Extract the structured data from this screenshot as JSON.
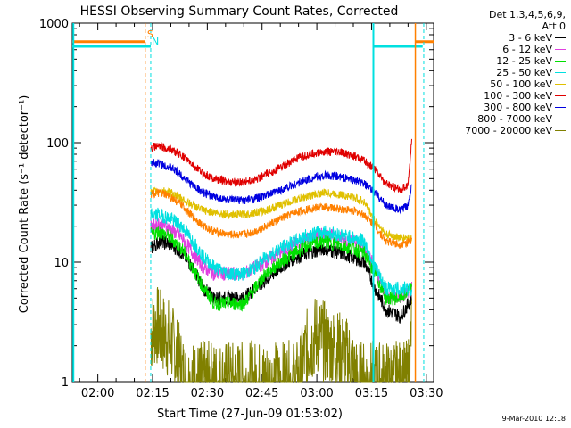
{
  "chart_data": {
    "type": "line",
    "title": "HESSI Observing Summary Count Rates, Corrected",
    "xlabel": "Start Time (27-Jun-09 01:53:02)",
    "ylabel": "Corrected Count Rate (s⁻¹ detector⁻¹)",
    "yscale": "log",
    "ylim": [
      1,
      1000
    ],
    "xlim_minutes": [
      113,
      212
    ],
    "x_ticks": [
      {
        "label": "02:00",
        "minutes": 120
      },
      {
        "label": "02:15",
        "minutes": 135
      },
      {
        "label": "02:30",
        "minutes": 150
      },
      {
        "label": "02:45",
        "minutes": 165
      },
      {
        "label": "03:00",
        "minutes": 180
      },
      {
        "label": "03:15",
        "minutes": 195
      },
      {
        "label": "03:30",
        "minutes": 210
      }
    ],
    "y_ticks": [
      {
        "label": "1",
        "value": 1
      },
      {
        "label": "10",
        "value": 10
      },
      {
        "label": "100",
        "value": 100
      },
      {
        "label": "1000",
        "value": 1000
      }
    ],
    "grid": false,
    "legend_placement": "outside-right",
    "legend_header": [
      "Det 1,3,4,5,6,9,",
      "Att 0"
    ],
    "series": [
      {
        "name": "3 - 6 keV",
        "color": "#000000",
        "points": [
          [
            134.5,
            13
          ],
          [
            137,
            15
          ],
          [
            140,
            14
          ],
          [
            143,
            12
          ],
          [
            146,
            9
          ],
          [
            149,
            6
          ],
          [
            152,
            5
          ],
          [
            156,
            5
          ],
          [
            160,
            5
          ],
          [
            163,
            6
          ],
          [
            166,
            7
          ],
          [
            170,
            9
          ],
          [
            174,
            11
          ],
          [
            178,
            12
          ],
          [
            182,
            13
          ],
          [
            186,
            12
          ],
          [
            190,
            11
          ],
          [
            193,
            10
          ],
          [
            196,
            6
          ],
          [
            199,
            4
          ],
          [
            203,
            3.5
          ],
          [
            206,
            5
          ]
        ]
      },
      {
        "name": "6 - 12 keV",
        "color": "#e040e0",
        "points": [
          [
            134.5,
            20
          ],
          [
            137,
            21
          ],
          [
            140,
            19
          ],
          [
            143,
            16
          ],
          [
            146,
            12
          ],
          [
            149,
            9
          ],
          [
            152,
            8
          ],
          [
            156,
            8
          ],
          [
            160,
            8
          ],
          [
            163,
            9
          ],
          [
            166,
            10
          ],
          [
            170,
            12
          ],
          [
            174,
            14
          ],
          [
            178,
            16
          ],
          [
            182,
            17
          ],
          [
            186,
            16
          ],
          [
            190,
            15
          ],
          [
            193,
            13
          ],
          [
            196,
            9
          ],
          [
            199,
            5
          ],
          [
            203,
            5
          ],
          [
            206,
            6
          ]
        ]
      },
      {
        "name": "12 - 25 keV",
        "color": "#00e000",
        "points": [
          [
            134.5,
            17
          ],
          [
            137,
            18
          ],
          [
            140,
            16
          ],
          [
            143,
            13
          ],
          [
            146,
            9
          ],
          [
            149,
            6
          ],
          [
            152,
            4.5
          ],
          [
            156,
            4.5
          ],
          [
            160,
            4.5
          ],
          [
            163,
            6
          ],
          [
            166,
            8
          ],
          [
            170,
            10
          ],
          [
            174,
            12
          ],
          [
            178,
            14
          ],
          [
            182,
            15
          ],
          [
            186,
            14
          ],
          [
            190,
            13
          ],
          [
            193,
            12
          ],
          [
            196,
            8
          ],
          [
            199,
            5
          ],
          [
            203,
            5
          ],
          [
            206,
            6
          ]
        ]
      },
      {
        "name": "25 - 50 keV",
        "color": "#00e0e0",
        "points": [
          [
            134.5,
            25
          ],
          [
            137,
            25
          ],
          [
            140,
            23
          ],
          [
            143,
            20
          ],
          [
            146,
            15
          ],
          [
            149,
            11
          ],
          [
            152,
            9
          ],
          [
            156,
            8
          ],
          [
            160,
            8
          ],
          [
            163,
            9
          ],
          [
            166,
            11
          ],
          [
            170,
            13
          ],
          [
            174,
            15
          ],
          [
            178,
            17
          ],
          [
            182,
            18
          ],
          [
            186,
            17
          ],
          [
            190,
            16
          ],
          [
            193,
            15
          ],
          [
            196,
            9
          ],
          [
            199,
            6
          ],
          [
            203,
            6
          ],
          [
            206,
            6
          ]
        ]
      },
      {
        "name": "50 - 100 keV",
        "color": "#e0c000",
        "points": [
          [
            134.5,
            38
          ],
          [
            137,
            40
          ],
          [
            140,
            38
          ],
          [
            143,
            34
          ],
          [
            146,
            30
          ],
          [
            149,
            27
          ],
          [
            152,
            26
          ],
          [
            156,
            25
          ],
          [
            160,
            25
          ],
          [
            163,
            26
          ],
          [
            166,
            27
          ],
          [
            170,
            30
          ],
          [
            174,
            33
          ],
          [
            178,
            36
          ],
          [
            182,
            38
          ],
          [
            186,
            37
          ],
          [
            190,
            35
          ],
          [
            193,
            32
          ],
          [
            196,
            22
          ],
          [
            199,
            17
          ],
          [
            203,
            16
          ],
          [
            206,
            16
          ]
        ]
      },
      {
        "name": "100 - 300 keV",
        "color": "#e00000",
        "points": [
          [
            134.5,
            92
          ],
          [
            137,
            93
          ],
          [
            140,
            88
          ],
          [
            143,
            78
          ],
          [
            146,
            65
          ],
          [
            149,
            55
          ],
          [
            152,
            50
          ],
          [
            156,
            47
          ],
          [
            160,
            47
          ],
          [
            163,
            49
          ],
          [
            166,
            54
          ],
          [
            170,
            62
          ],
          [
            174,
            72
          ],
          [
            178,
            80
          ],
          [
            182,
            84
          ],
          [
            186,
            83
          ],
          [
            190,
            78
          ],
          [
            193,
            70
          ],
          [
            196,
            60
          ],
          [
            199,
            45
          ],
          [
            203,
            40
          ],
          [
            205,
            45
          ],
          [
            206,
            105
          ]
        ]
      },
      {
        "name": "300 - 800 keV",
        "color": "#0000e0",
        "points": [
          [
            134.5,
            68
          ],
          [
            137,
            67
          ],
          [
            140,
            62
          ],
          [
            143,
            53
          ],
          [
            146,
            44
          ],
          [
            149,
            38
          ],
          [
            152,
            35
          ],
          [
            156,
            33
          ],
          [
            160,
            33
          ],
          [
            163,
            34
          ],
          [
            166,
            36
          ],
          [
            170,
            40
          ],
          [
            174,
            45
          ],
          [
            178,
            50
          ],
          [
            182,
            53
          ],
          [
            186,
            52
          ],
          [
            190,
            49
          ],
          [
            193,
            45
          ],
          [
            196,
            38
          ],
          [
            199,
            30
          ],
          [
            203,
            27
          ],
          [
            205,
            30
          ],
          [
            206,
            45
          ]
        ]
      },
      {
        "name": "800 - 7000 keV",
        "color": "#ff8000",
        "points": [
          [
            134.5,
            37
          ],
          [
            137,
            38
          ],
          [
            140,
            35
          ],
          [
            143,
            30
          ],
          [
            146,
            24
          ],
          [
            149,
            20
          ],
          [
            152,
            18
          ],
          [
            156,
            17
          ],
          [
            160,
            17
          ],
          [
            163,
            18
          ],
          [
            166,
            20
          ],
          [
            170,
            23
          ],
          [
            174,
            26
          ],
          [
            178,
            28
          ],
          [
            182,
            29
          ],
          [
            186,
            28
          ],
          [
            190,
            27
          ],
          [
            193,
            25
          ],
          [
            196,
            20
          ],
          [
            199,
            15
          ],
          [
            203,
            14
          ],
          [
            206,
            15
          ]
        ]
      },
      {
        "name": "7000 - 20000 keV",
        "color": "#808000",
        "points": [
          [
            134.5,
            2.5
          ],
          [
            136,
            3
          ],
          [
            138,
            2.5
          ],
          [
            140,
            2.2
          ],
          [
            142,
            1.5
          ],
          [
            144,
            1
          ],
          [
            175,
            1
          ],
          [
            177,
            1.8
          ],
          [
            180,
            2.5
          ],
          [
            183,
            2
          ],
          [
            186,
            1.8
          ],
          [
            189,
            1.5
          ],
          [
            191,
            1
          ],
          [
            205,
            1
          ],
          [
            206,
            3
          ]
        ]
      }
    ],
    "flag_lines": [
      {
        "label": "S",
        "minutes": 133,
        "color": "#ff8000"
      },
      {
        "label": "N",
        "minutes": 134.5,
        "color": "#00e0e0"
      }
    ]
  },
  "footer": {
    "stamp": "9-Mar-2010 12:18"
  }
}
